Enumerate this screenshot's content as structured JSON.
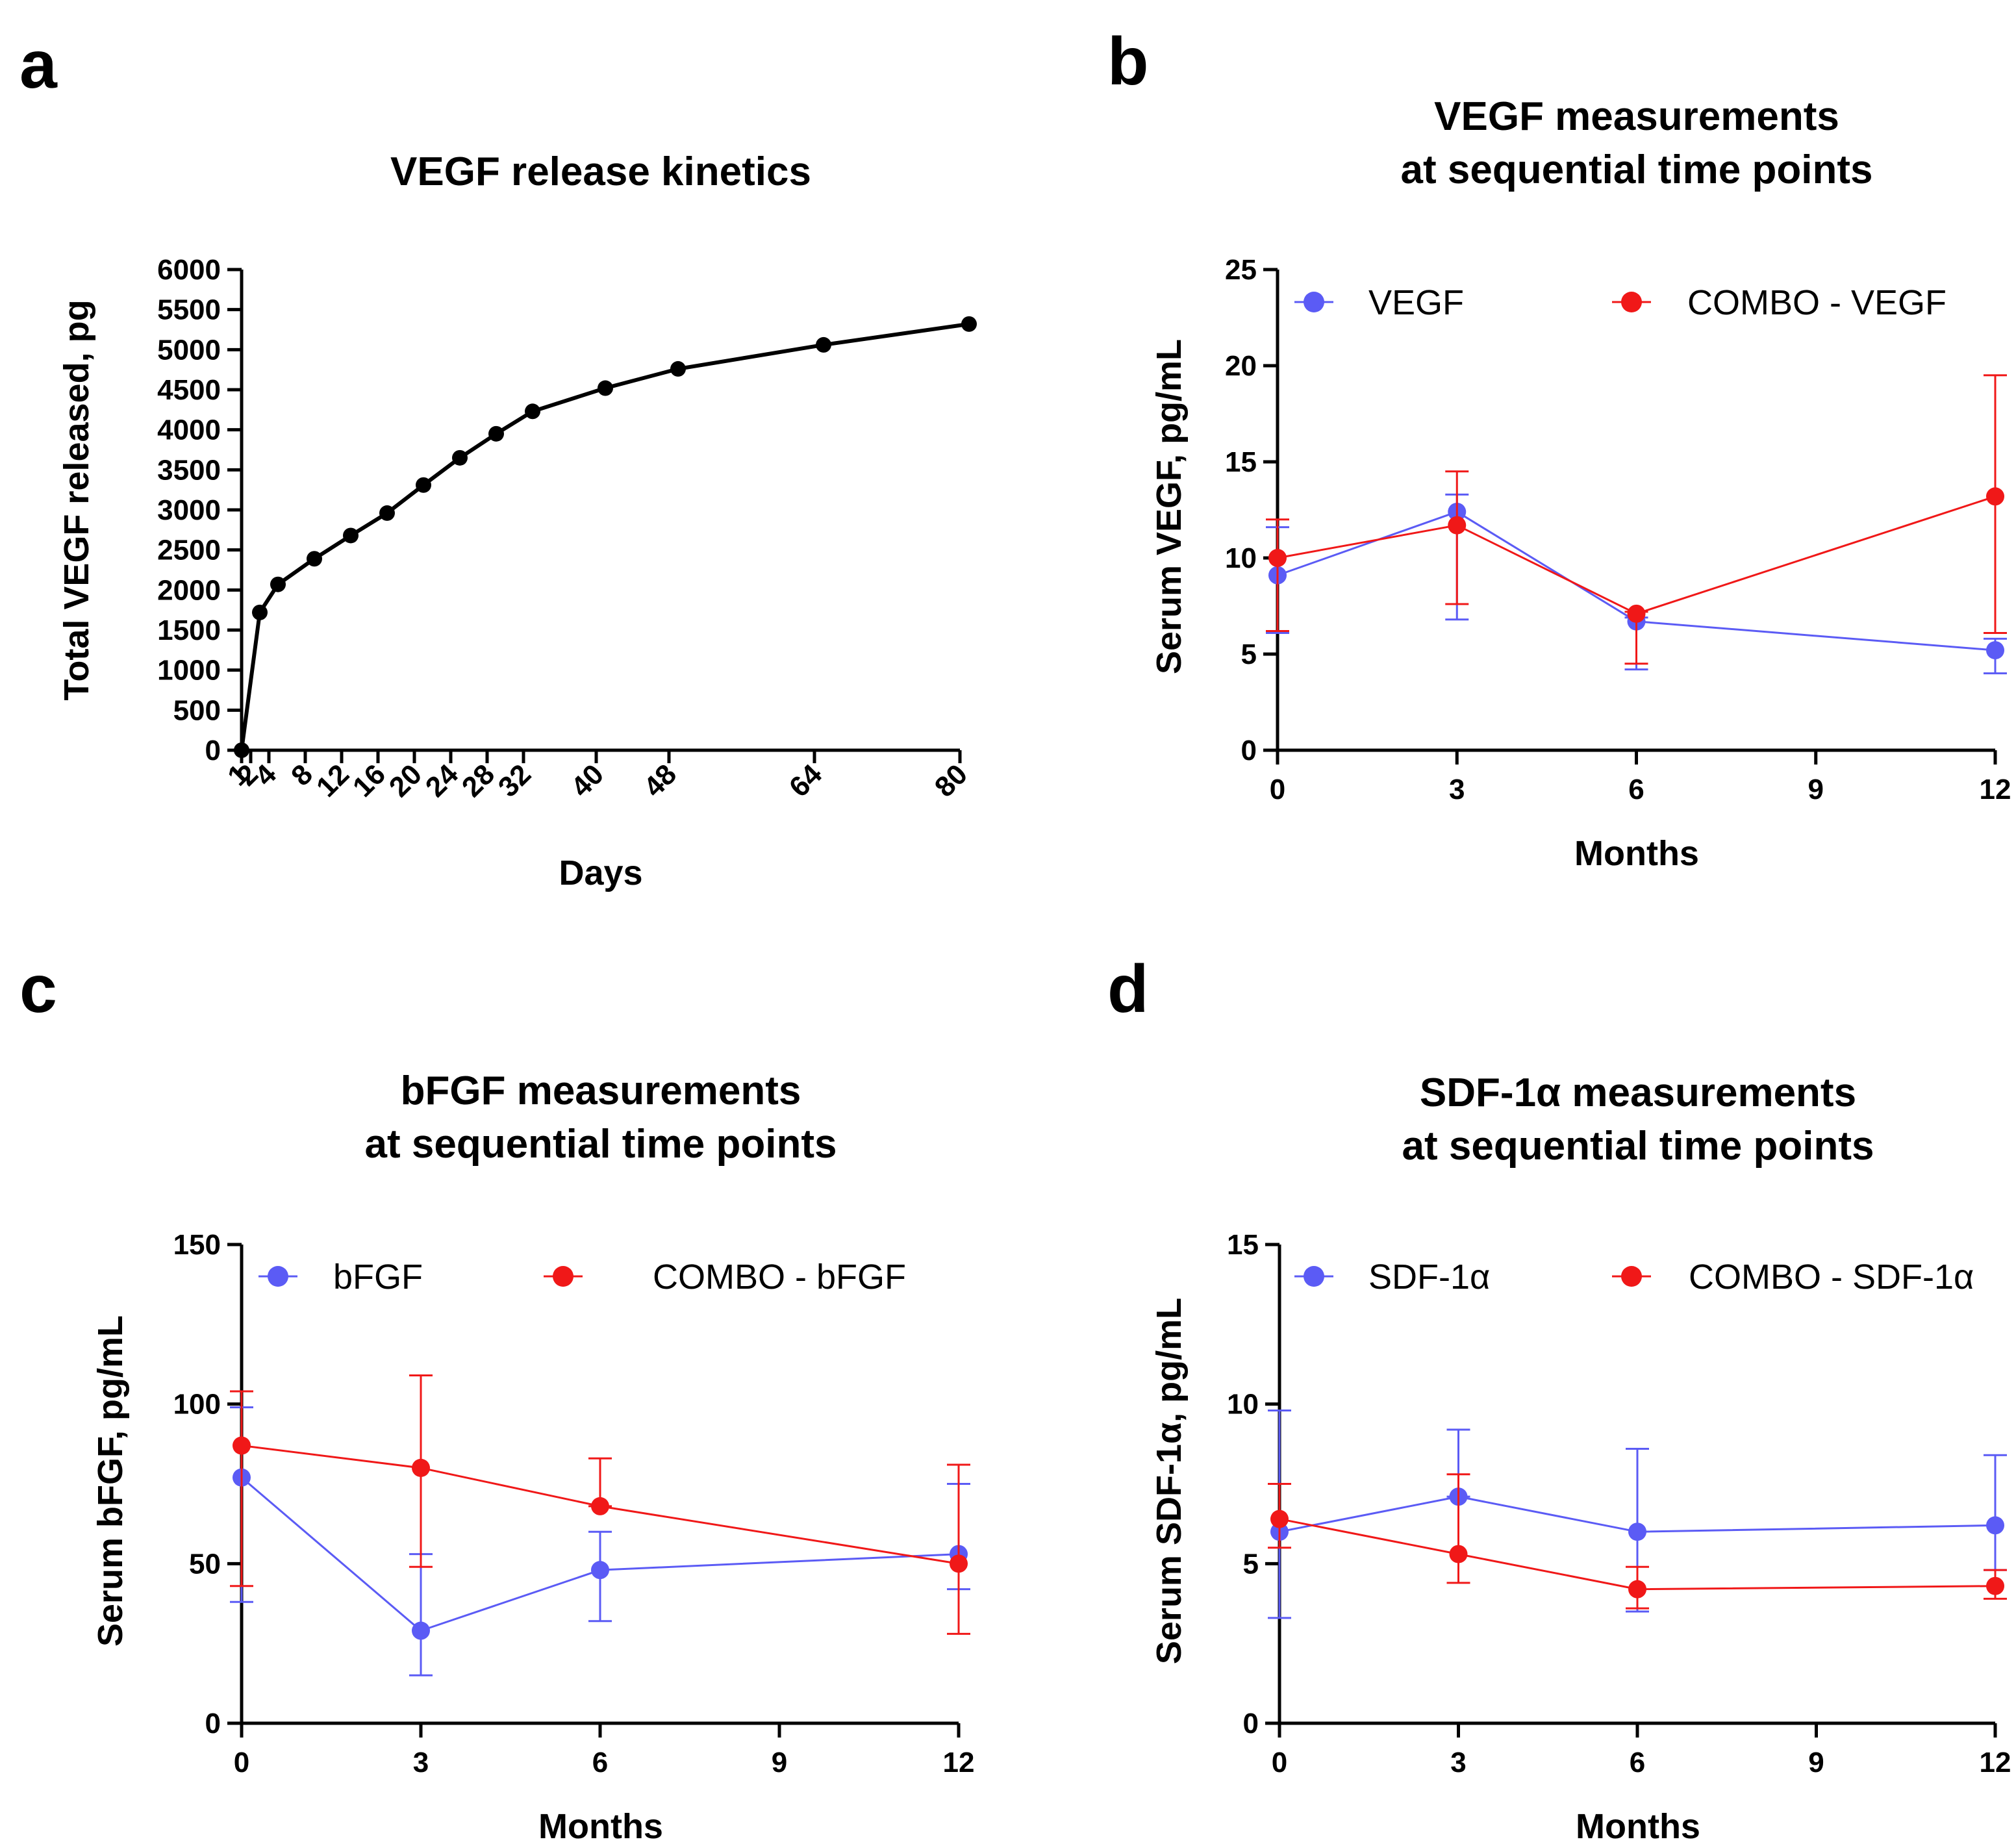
{
  "colors": {
    "vegf_blue": "#5b5bf5",
    "combo_red": "#f01818",
    "black": "#000000"
  },
  "chart_data": [
    {
      "panel": "a",
      "type": "line",
      "title": "VEGF release kinetics",
      "xlabel": "Days",
      "ylabel": "Total VEGF released, pg",
      "xlim": [
        1,
        80
      ],
      "ylim": [
        0,
        6000
      ],
      "xticks": [
        1,
        2,
        4,
        8,
        12,
        16,
        20,
        24,
        28,
        32,
        40,
        48,
        64,
        80
      ],
      "yticks": [
        0,
        500,
        1000,
        1500,
        2000,
        2500,
        3000,
        3500,
        4000,
        4500,
        5000,
        5500,
        6000
      ],
      "grid": false,
      "legend": null,
      "series": [
        {
          "name": "VEGF release",
          "color": "#000000",
          "x": [
            1,
            3,
            5,
            9,
            13,
            17,
            21,
            25,
            29,
            33,
            41,
            49,
            65,
            81
          ],
          "values": [
            0,
            1720,
            2070,
            2390,
            2680,
            2960,
            3310,
            3650,
            3950,
            4230,
            4520,
            4760,
            5060,
            5320
          ]
        }
      ]
    },
    {
      "panel": "b",
      "type": "line",
      "title": [
        "VEGF measurements",
        "at sequential time points"
      ],
      "xlabel": "Months",
      "ylabel": "Serum VEGF, pg/mL",
      "xlim": [
        0,
        12
      ],
      "ylim": [
        0,
        25
      ],
      "xticks": [
        0,
        3,
        6,
        9,
        12
      ],
      "yticks": [
        0,
        5,
        10,
        15,
        20,
        25
      ],
      "grid": false,
      "legend": "top",
      "series": [
        {
          "name": "VEGF",
          "color": "#5b5bf5",
          "x": [
            0,
            3,
            6,
            12
          ],
          "values": [
            9.1,
            12.4,
            6.7,
            5.2
          ],
          "err_low": [
            6.1,
            6.8,
            4.2,
            4.0
          ],
          "err_high": [
            11.6,
            13.3,
            6.9,
            5.8
          ]
        },
        {
          "name": "COMBO - VEGF",
          "color": "#f01818",
          "x": [
            0,
            3,
            6,
            12
          ],
          "values": [
            10.0,
            11.7,
            7.1,
            13.2
          ],
          "err_low": [
            6.2,
            7.6,
            4.5,
            6.1
          ],
          "err_high": [
            12.0,
            14.5,
            7.2,
            19.5
          ]
        }
      ]
    },
    {
      "panel": "c",
      "type": "line",
      "title": [
        "bFGF measurements",
        "at sequential time points"
      ],
      "xlabel": "Months",
      "ylabel": "Serum bFGF, pg/mL",
      "xlim": [
        0,
        12
      ],
      "ylim": [
        0,
        150
      ],
      "xticks": [
        0,
        3,
        6,
        9,
        12
      ],
      "yticks": [
        0,
        50,
        100,
        150
      ],
      "grid": false,
      "legend": "top",
      "series": [
        {
          "name": "bFGF",
          "color": "#5b5bf5",
          "x": [
            0,
            3,
            6,
            12
          ],
          "values": [
            77,
            29,
            48,
            53
          ],
          "err_low": [
            38,
            15,
            32,
            42
          ],
          "err_high": [
            99,
            53,
            60,
            75
          ]
        },
        {
          "name": "COMBO - bFGF",
          "color": "#f01818",
          "x": [
            0,
            3,
            6,
            12
          ],
          "values": [
            87,
            80,
            68,
            50
          ],
          "err_low": [
            43,
            49,
            68,
            28
          ],
          "err_high": [
            104,
            109,
            83,
            81
          ]
        }
      ]
    },
    {
      "panel": "d",
      "type": "line",
      "title": [
        "SDF-1α measurements",
        "at sequential time points"
      ],
      "xlabel": "Months",
      "ylabel": "Serum SDF-1α, pg/mL",
      "xlim": [
        0,
        12
      ],
      "ylim": [
        0,
        15
      ],
      "xticks": [
        0,
        3,
        6,
        9,
        12
      ],
      "yticks": [
        0,
        5,
        10,
        15
      ],
      "grid": false,
      "legend": "top",
      "series": [
        {
          "name": "SDF-1α",
          "color": "#5b5bf5",
          "x": [
            0,
            3,
            6,
            12
          ],
          "values": [
            6.0,
            7.1,
            6.0,
            6.2
          ],
          "err_low": [
            3.3,
            7.1,
            3.5,
            4.8
          ],
          "err_high": [
            9.8,
            9.2,
            8.6,
            8.4
          ]
        },
        {
          "name": "COMBO - SDF-1α",
          "color": "#f01818",
          "x": [
            0,
            3,
            6,
            12
          ],
          "values": [
            6.4,
            5.3,
            4.2,
            4.3
          ],
          "err_low": [
            5.5,
            4.4,
            3.6,
            3.9
          ],
          "err_high": [
            7.5,
            7.8,
            4.9,
            4.8
          ]
        }
      ]
    }
  ]
}
